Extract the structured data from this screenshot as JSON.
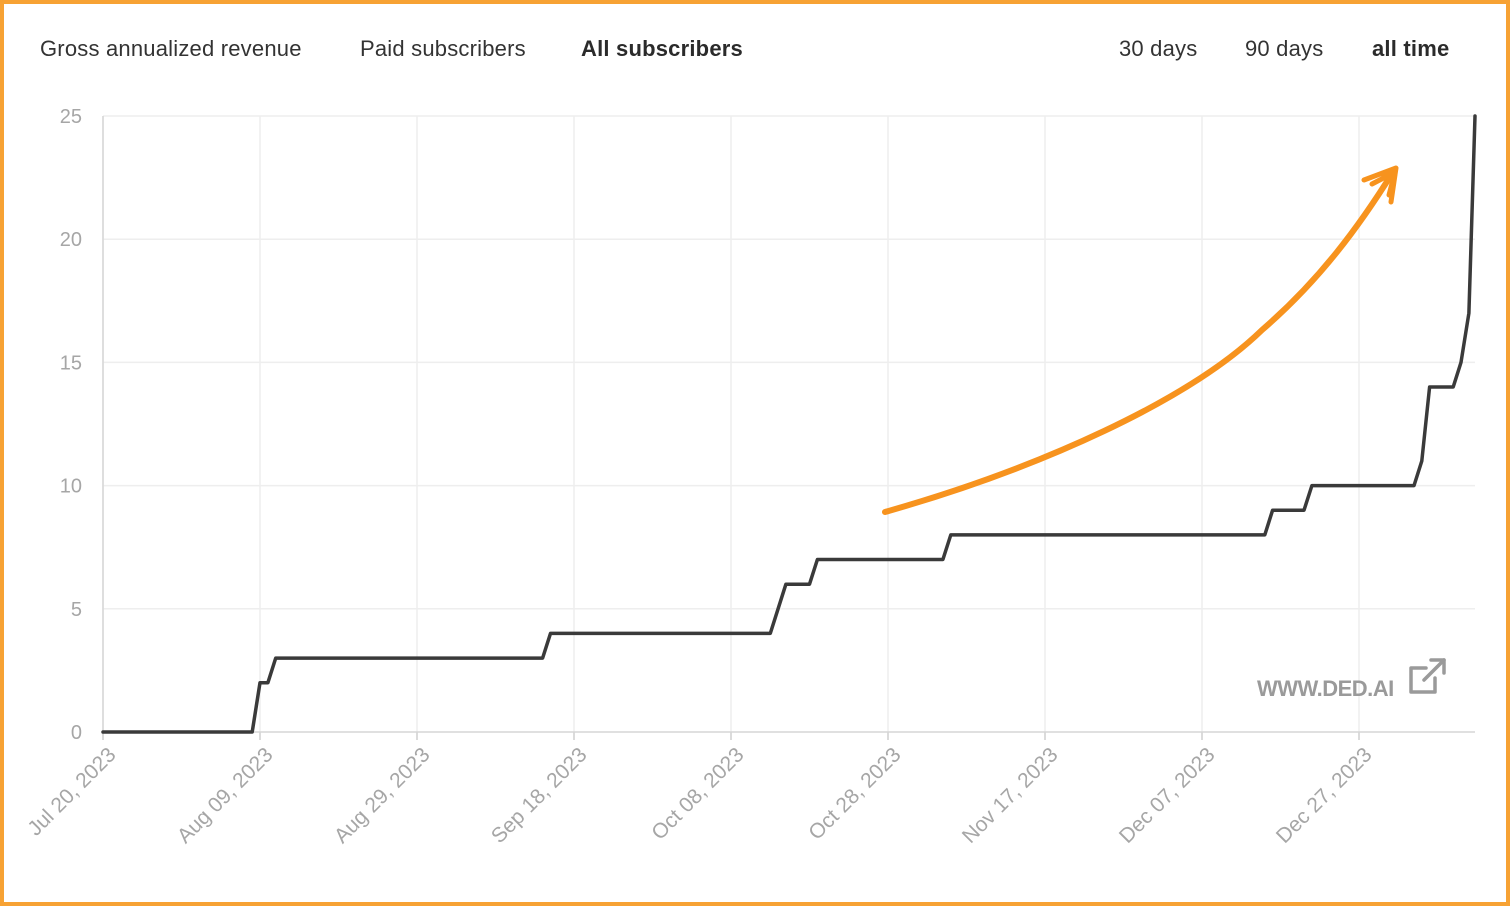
{
  "metric_tabs": [
    {
      "label": "Gross annualized revenue",
      "active": false
    },
    {
      "label": "Paid subscribers",
      "active": false
    },
    {
      "label": "All subscribers",
      "active": true
    }
  ],
  "range_tabs": [
    {
      "label": "30 days",
      "active": false
    },
    {
      "label": "90 days",
      "active": false
    },
    {
      "label": "all time",
      "active": true
    }
  ],
  "watermark": {
    "text": "WWW.DED.AI",
    "icon": "external-link-icon"
  },
  "annotation": {
    "icon": "hand-drawn-arrow-icon",
    "color": "#f7931e"
  },
  "colors": {
    "line": "#3a3a3a",
    "grid": "#eeeeee",
    "frame": "#f7a234",
    "arrow": "#f7931e"
  },
  "chart_data": {
    "type": "line",
    "x_axis": "date",
    "xlim": [
      "2023-07-20",
      "2024-01-04"
    ],
    "ylim": [
      0,
      25
    ],
    "yticks": [
      0,
      5,
      10,
      15,
      20,
      25
    ],
    "xticks": [
      "2023-07-20",
      "2023-08-09",
      "2023-08-29",
      "2023-09-18",
      "2023-10-08",
      "2023-10-28",
      "2023-11-17",
      "2023-12-07",
      "2023-12-27"
    ],
    "xtick_labels": [
      "Jul 20, 2023",
      "Aug 09, 2023",
      "Aug 29, 2023",
      "Sep 18, 2023",
      "Oct 08, 2023",
      "Oct 28, 2023",
      "Nov 17, 2023",
      "Dec 07, 2023",
      "Dec 27, 2023"
    ],
    "grid": true,
    "series": [
      {
        "points": [
          [
            "2023-07-20",
            0
          ],
          [
            "2023-08-08",
            0
          ],
          [
            "2023-08-09",
            2
          ],
          [
            "2023-08-10",
            2
          ],
          [
            "2023-08-11",
            3
          ],
          [
            "2023-09-14",
            3
          ],
          [
            "2023-09-15",
            4
          ],
          [
            "2023-10-13",
            4
          ],
          [
            "2023-10-15",
            6
          ],
          [
            "2023-10-18",
            6
          ],
          [
            "2023-10-19",
            7
          ],
          [
            "2023-11-04",
            7
          ],
          [
            "2023-11-05",
            8
          ],
          [
            "2023-12-15",
            8
          ],
          [
            "2023-12-16",
            9
          ],
          [
            "2023-12-20",
            9
          ],
          [
            "2023-12-21",
            10
          ],
          [
            "2024-01-03",
            10
          ],
          [
            "2024-01-04",
            11
          ],
          [
            "2024-01-05",
            14
          ],
          [
            "2024-01-08",
            14
          ],
          [
            "2024-01-09",
            15
          ],
          [
            "2024-01-10",
            17
          ],
          [
            "2024-01-11",
            25
          ]
        ]
      }
    ]
  }
}
